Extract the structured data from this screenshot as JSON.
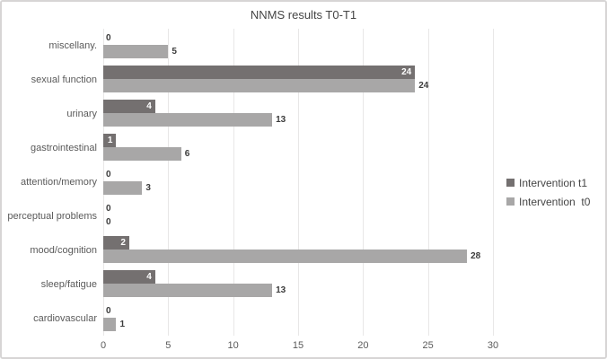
{
  "chart_data": {
    "type": "bar",
    "orientation": "horizontal",
    "title": "NNMS results T0-T1",
    "categories": [
      "miscellany.",
      "sexual function",
      "urinary",
      "gastrointestinal",
      "attention/memory",
      "perceptual problems",
      "mood/cognition",
      "sleep/fatigue",
      "cardiovascular"
    ],
    "series": [
      {
        "name": "Intervention t1",
        "color": "#747070",
        "values": [
          0,
          24,
          4,
          1,
          0,
          0,
          2,
          4,
          0
        ]
      },
      {
        "name": "Intervention  t0",
        "color": "#a8a7a7",
        "values": [
          5,
          24,
          13,
          6,
          3,
          0,
          28,
          13,
          1
        ]
      }
    ],
    "xlim": [
      0,
      30
    ],
    "xticks": [
      0,
      5,
      10,
      15,
      20,
      25,
      30
    ],
    "grid": "vertical",
    "legend_position": "right",
    "colors": {
      "background": "#ffffff",
      "frame_border": "#d7d5d5",
      "gridline": "#e8e7e7",
      "bar_dark": "#747070",
      "bar_light": "#a8a7a7",
      "value_label_inside": "#ffffff",
      "value_label_outside": "#3b3b3b",
      "axis_text": "#5a5a5a",
      "title_text": "#454545"
    }
  }
}
